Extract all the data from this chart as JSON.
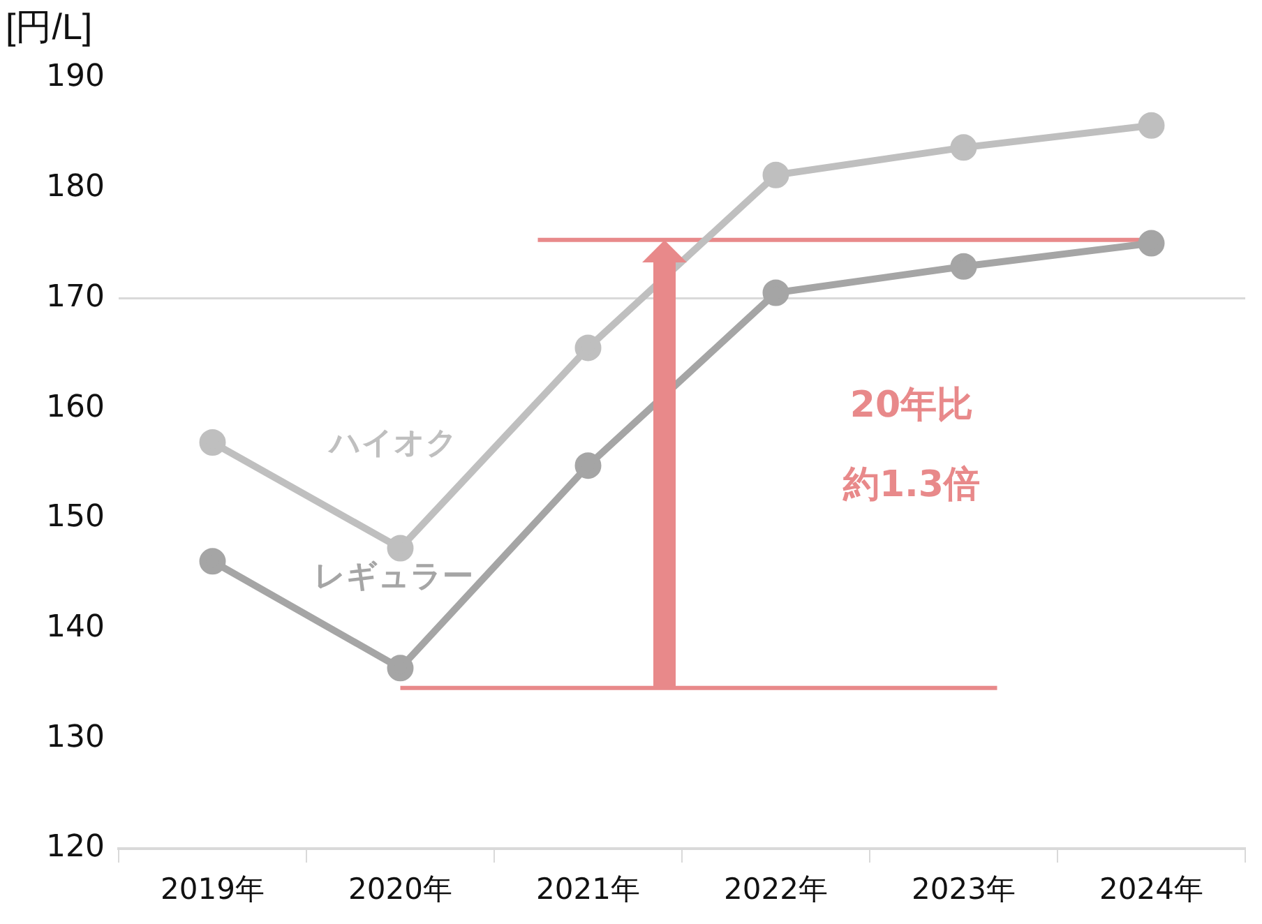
{
  "chart_data": {
    "type": "line",
    "ylabel": "[円/L]",
    "categories": [
      "2019年",
      "2020年",
      "2021年",
      "2022年",
      "2023年",
      "2024年"
    ],
    "series": [
      {
        "name": "ハイオク",
        "color": "#bfbfbf",
        "values": [
          156.9,
          147.3,
          165.5,
          181.2,
          183.7,
          185.7
        ]
      },
      {
        "name": "レギュラー",
        "color": "#a5a5a5",
        "values": [
          146.1,
          136.4,
          154.8,
          170.5,
          172.9,
          175.0
        ]
      }
    ],
    "ylim": [
      120,
      190
    ],
    "yticks": [
      120,
      130,
      140,
      150,
      160,
      170,
      180,
      190
    ],
    "grid": false,
    "legend": false,
    "marker": "circle",
    "line_style": "solid",
    "ref_lines": [
      {
        "axis": "y",
        "value": 170,
        "label": null,
        "color": "#d9d9d9"
      },
      {
        "axis": "y",
        "value": 134.6,
        "label": null,
        "color": "#e8898a"
      },
      {
        "axis": "y",
        "value": 175.3,
        "label": null,
        "color": "#e8898a"
      }
    ],
    "annotations": [
      "20年比",
      "約1.3倍"
    ]
  }
}
